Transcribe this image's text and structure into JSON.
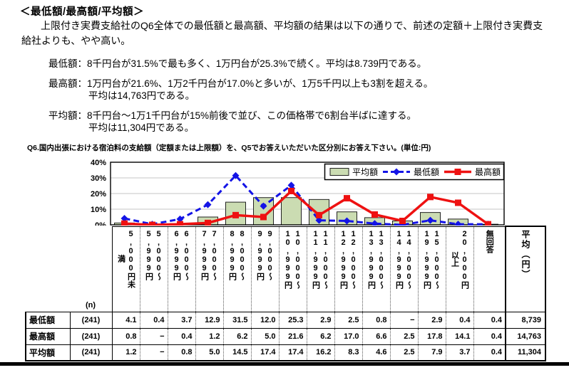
{
  "content": {
    "heading": "＜最低額/最高額/平均額＞",
    "intro": "上限付き実費支給社のQ6全体での最低額と最高額、平均額の結果は以下の通りで、前述の定額＋上限付き実費支給社よりも、やや高い。",
    "bullets": [
      {
        "line1": "最低額：8千円台が31.5%で最も多く、1万円台が25.3%で続く。平均は8.739円である。",
        "line2": ""
      },
      {
        "line1": "最高額：1万円台が21.6%、1万2千円台が17.0%と多いが、1万5千円以上も3割を超える。",
        "line2": "平均は14,763円である。"
      },
      {
        "line1": "平均額：8千円台～1万1千円台が15%前後で並び、この価格帯で6割台半ばに達する。",
        "line2": "平均は11,304円である。"
      }
    ],
    "chart_title": "Q6.国内出張における宿泊料の支給額（定額または上限額）を、Q5でお答えいただいた区分別にお答え下さい。(単位:円)"
  },
  "chart_data": {
    "type": "bar",
    "categories": [
      "5,000円未満",
      "5,000～5,999円",
      "6,000～6,999円",
      "7,000～7,999円",
      "8,000～8,999円",
      "9,000～9,999円",
      "10,000～10,999円",
      "11,000～11,999円",
      "12,000～12,999円",
      "13,000～13,999円",
      "14,000～14,999円",
      "15,000～19,999円",
      "20,000円以上",
      "無回答"
    ],
    "series": [
      {
        "name": "平均額",
        "type": "bar",
        "color": "#cbdcb2",
        "border": "#222222",
        "values": [
          1.2,
          null,
          0.8,
          5.0,
          14.5,
          17.4,
          17.4,
          16.2,
          8.3,
          4.6,
          2.5,
          7.9,
          3.7,
          0.4
        ]
      },
      {
        "name": "最低額",
        "type": "line",
        "dashed": true,
        "marker": "diamond",
        "color": "#1414e6",
        "values": [
          4.1,
          0.4,
          3.7,
          12.9,
          31.5,
          12.0,
          25.3,
          2.9,
          2.5,
          0.8,
          null,
          2.9,
          0.4,
          0.4
        ]
      },
      {
        "name": "最高額",
        "type": "line",
        "dashed": false,
        "marker": "square",
        "color": "#ee1111",
        "values": [
          0.8,
          null,
          0.4,
          1.2,
          6.2,
          5.0,
          21.6,
          6.2,
          17.0,
          6.6,
          2.5,
          17.8,
          14.1,
          0.4
        ]
      }
    ],
    "ylabel": "%",
    "ylim": [
      0,
      40
    ],
    "yticks": [
      "0%",
      "10%",
      "20%",
      "30%",
      "40%"
    ],
    "grid": true,
    "legend_position": "top-right",
    "grid_color": "#c4c4c4"
  },
  "table": {
    "n_label": "(n)",
    "col_headers": [
      "5,000円未\n満",
      "5,000～\n5,999円",
      "6,000～\n6,999円",
      "7,000～\n7,999円",
      "8,000～\n8,999円",
      "9,000～\n9,999円",
      "10,000～\n10,999円",
      "11,000～\n11,999円",
      "12,000～\n12,999円",
      "13,000～\n13,999円",
      "14,000～\n14,999円",
      "15,000～\n19,999円",
      "20,000円\n以上",
      "無回答"
    ],
    "avg_header": "平均（円）",
    "rows": [
      {
        "label": "最低額",
        "n": "(241)",
        "values": [
          "4.1",
          "0.4",
          "3.7",
          "12.9",
          "31.5",
          "12.0",
          "25.3",
          "2.9",
          "2.5",
          "0.8",
          "−",
          "2.9",
          "0.4",
          "0.4"
        ],
        "avg": "8,739"
      },
      {
        "label": "最高額",
        "n": "(241)",
        "values": [
          "0.8",
          "−",
          "0.4",
          "1.2",
          "6.2",
          "5.0",
          "21.6",
          "6.2",
          "17.0",
          "6.6",
          "2.5",
          "17.8",
          "14.1",
          "0.4"
        ],
        "avg": "14,763"
      },
      {
        "label": "平均額",
        "n": "(241)",
        "values": [
          "1.2",
          "−",
          "0.8",
          "5.0",
          "14.5",
          "17.4",
          "17.4",
          "16.2",
          "8.3",
          "4.6",
          "2.5",
          "7.9",
          "3.7",
          "0.4"
        ],
        "avg": "11,304"
      }
    ]
  }
}
